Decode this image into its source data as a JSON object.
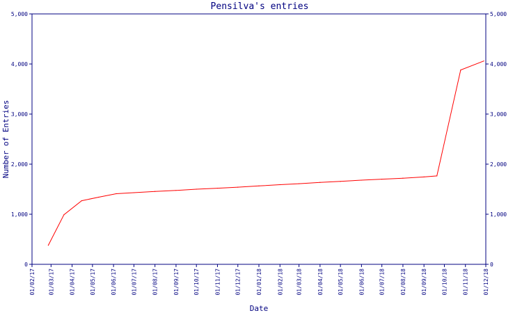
{
  "chart_data": {
    "type": "line",
    "title": "Pensilva's entries",
    "xlabel": "Date",
    "ylabel": "Number of Entries",
    "ylim": [
      0,
      5000
    ],
    "xlim": [
      "2017-02-01",
      "2018-12-01"
    ],
    "yticks": [
      0,
      1000,
      2000,
      3000,
      4000,
      5000
    ],
    "ytick_labels": [
      "0",
      "1,000",
      "2,000",
      "3,000",
      "4,000",
      "5,000"
    ],
    "xticks": [
      "2017-02-01",
      "2017-03-01",
      "2017-04-01",
      "2017-05-01",
      "2017-06-01",
      "2017-07-01",
      "2017-08-01",
      "2017-09-01",
      "2017-10-01",
      "2017-11-01",
      "2017-12-01",
      "2018-01-01",
      "2018-02-01",
      "2018-03-01",
      "2018-04-01",
      "2018-05-01",
      "2018-06-01",
      "2018-07-01",
      "2018-08-01",
      "2018-09-01",
      "2018-10-01",
      "2018-11-01",
      "2018-12-01"
    ],
    "xtick_labels": [
      "01/02/17",
      "01/03/17",
      "01/04/17",
      "01/05/17",
      "01/06/17",
      "01/07/17",
      "01/08/17",
      "01/09/17",
      "01/10/17",
      "01/11/17",
      "01/12/17",
      "01/01/18",
      "01/02/18",
      "01/03/18",
      "01/04/18",
      "01/05/18",
      "01/06/18",
      "01/07/18",
      "01/08/18",
      "01/09/18",
      "01/10/18",
      "01/11/18",
      "01/12/18"
    ],
    "grid": false,
    "colors": {
      "line": "#ff0000",
      "axis": "#000080",
      "text": "#000080"
    },
    "series": [
      {
        "points": [
          [
            "2017-02-25",
            380
          ],
          [
            "2017-03-20",
            990
          ],
          [
            "2017-04-15",
            1270
          ],
          [
            "2017-05-10",
            1340
          ],
          [
            "2017-06-05",
            1410
          ],
          [
            "2017-07-01",
            1430
          ],
          [
            "2017-08-01",
            1455
          ],
          [
            "2017-09-01",
            1475
          ],
          [
            "2017-10-01",
            1500
          ],
          [
            "2017-11-01",
            1520
          ],
          [
            "2017-12-01",
            1540
          ],
          [
            "2018-01-01",
            1565
          ],
          [
            "2018-02-01",
            1590
          ],
          [
            "2018-03-01",
            1610
          ],
          [
            "2018-04-01",
            1635
          ],
          [
            "2018-05-01",
            1655
          ],
          [
            "2018-06-01",
            1680
          ],
          [
            "2018-07-01",
            1700
          ],
          [
            "2018-08-01",
            1720
          ],
          [
            "2018-09-01",
            1745
          ],
          [
            "2018-09-20",
            1765
          ],
          [
            "2018-10-25",
            3880
          ],
          [
            "2018-11-28",
            4060
          ]
        ]
      }
    ]
  }
}
